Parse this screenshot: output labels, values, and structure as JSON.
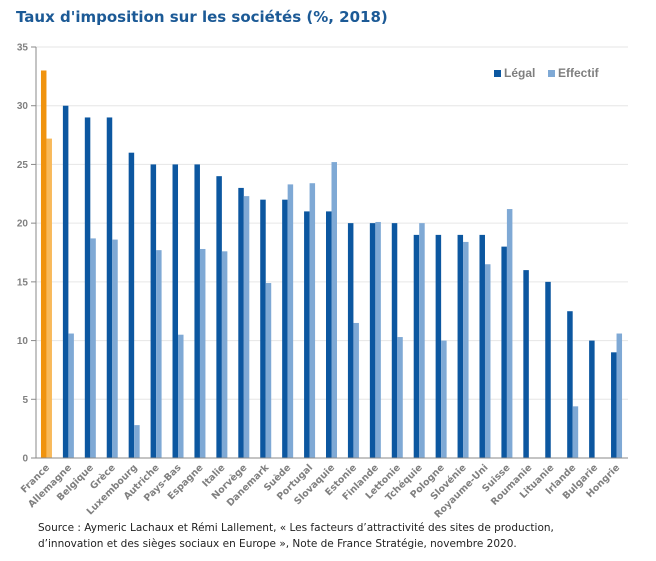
{
  "chart_data": {
    "type": "bar",
    "title": "Taux d'imposition sur les sociétés (%, 2018)",
    "xlabel": "",
    "ylabel": "",
    "ylim": [
      0,
      35
    ],
    "yticks": [
      0,
      5,
      10,
      15,
      20,
      25,
      30,
      35
    ],
    "grid": true,
    "legend_position": "top-right",
    "highlight_category": "France",
    "categories": [
      "France",
      "Allemagne",
      "Belgique",
      "Grèce",
      "Luxembourg",
      "Autriche",
      "Pays-Bas",
      "Espagne",
      "Italie",
      "Norvège",
      "Danemark",
      "Suède",
      "Portugal",
      "Slovaquie",
      "Estonie",
      "Finlande",
      "Lettonie",
      "Tchéquie",
      "Pologne",
      "Slovénie",
      "Royaume-Uni",
      "Suisse",
      "Roumanie",
      "Lituanie",
      "Irlande",
      "Bulgarie",
      "Hongrie"
    ],
    "series": [
      {
        "name": "Légal",
        "color": "#0c57a0",
        "highlight_color": "#f0930e",
        "values": [
          33,
          30,
          29,
          29,
          26,
          25,
          25,
          25,
          24,
          23,
          22,
          22,
          21,
          21,
          20,
          20,
          20,
          19,
          19,
          19,
          19,
          18,
          16,
          15,
          12.5,
          10,
          9
        ]
      },
      {
        "name": "Effectif",
        "color": "#7fa9d5",
        "highlight_color": "#f8b95a",
        "values": [
          27.2,
          10.6,
          18.7,
          18.6,
          2.8,
          17.7,
          10.5,
          17.8,
          17.6,
          22.3,
          14.9,
          23.3,
          23.4,
          25.2,
          11.5,
          20.1,
          10.3,
          20,
          10,
          18.4,
          16.5,
          21.2,
          0,
          0,
          4.4,
          0,
          10.6
        ]
      }
    ]
  },
  "source": {
    "line1": "Source : Aymeric Lachaux et Rémi Lallement, « Les facteurs d’attractivité des sites de production,",
    "line2": "d’innovation et  des sièges sociaux en  Europe »,  Note  de  France  Stratégie, novembre  2020."
  }
}
